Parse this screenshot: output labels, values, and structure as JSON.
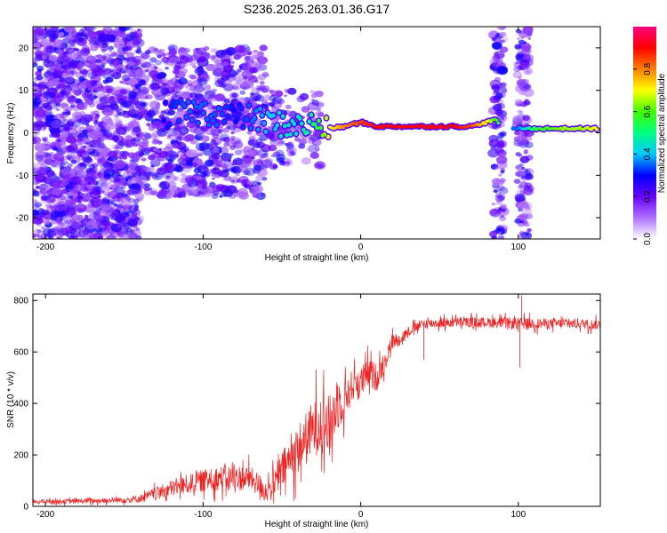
{
  "figure_title": "S236.2025.263.01.36.G17",
  "chart_data": [
    {
      "type": "heatmap",
      "panel": "top",
      "title": "S236.2025.263.01.36.G17",
      "xlabel": "Height of straight line (km)",
      "ylabel": "Frequency (Hz)",
      "xlim": [
        -208,
        152
      ],
      "ylim": [
        -25,
        25
      ],
      "x_ticks": [
        -200,
        -100,
        0,
        100
      ],
      "x_tick_labels": [
        "-200",
        "-100",
        "0",
        "100"
      ],
      "y_ticks": [
        -20,
        -10,
        0,
        10,
        20
      ],
      "y_tick_labels": [
        "-20",
        "-10",
        "0",
        "10",
        "20"
      ],
      "colorbar": {
        "label": "Normalized spectral amplitude",
        "range": [
          0,
          1
        ],
        "ticks": [
          0.0,
          0.2,
          0.4,
          0.6,
          0.8
        ],
        "tick_labels": [
          "0.0",
          "0.2",
          "0.4",
          "0.6",
          "0.8"
        ],
        "colors": [
          "#ffffff",
          "#b070ff",
          "#6a00ff",
          "#0000ff",
          "#00c8ff",
          "#00ff80",
          "#40ff00",
          "#ffff00",
          "#ff8000",
          "#ff0000",
          "#ff0080"
        ]
      },
      "ridge": {
        "x": [
          -125,
          -110,
          -100,
          -90,
          -80,
          -70,
          -60,
          -50,
          -40,
          -30,
          -20,
          -10,
          0,
          10,
          20,
          30,
          40,
          50,
          60,
          70,
          80,
          85,
          95,
          100,
          110,
          120,
          130,
          140,
          150
        ],
        "y": [
          4,
          5,
          5,
          4.5,
          4,
          3.5,
          2.5,
          2,
          1.5,
          2,
          1,
          1.5,
          2.5,
          1.5,
          1.5,
          1.5,
          1.5,
          1.5,
          1.5,
          1.5,
          2.5,
          3,
          1,
          1,
          1,
          1,
          1,
          1,
          1
        ],
        "amplitude": [
          0.3,
          0.35,
          0.35,
          0.35,
          0.3,
          0.35,
          0.4,
          0.45,
          0.45,
          0.5,
          0.7,
          0.8,
          0.85,
          0.9,
          0.9,
          0.9,
          0.9,
          0.9,
          0.9,
          0.85,
          0.7,
          0.6,
          0.4,
          0.35,
          0.55,
          0.6,
          0.65,
          0.65,
          0.7
        ]
      },
      "noise_bands": [
        {
          "x_range": [
            -208,
            -140
          ],
          "y_range": [
            -25,
            25
          ],
          "density": 0.9
        },
        {
          "x_range": [
            -140,
            -60
          ],
          "y_range": [
            -15,
            20
          ],
          "density": 0.6
        },
        {
          "x_range": [
            -60,
            -25
          ],
          "y_range": [
            -8,
            10
          ],
          "density": 0.4
        },
        {
          "x_range": [
            84,
            91
          ],
          "y_range": [
            -25,
            25
          ],
          "density": 0.8
        },
        {
          "x_range": [
            99,
            107
          ],
          "y_range": [
            -25,
            25
          ],
          "density": 0.8
        }
      ]
    },
    {
      "type": "line",
      "panel": "bottom",
      "xlabel": "Height of straight line (km)",
      "ylabel": "SNR (10 * v/v)",
      "xlim": [
        -208,
        152
      ],
      "ylim": [
        0,
        825
      ],
      "x_ticks": [
        -200,
        -100,
        0,
        100
      ],
      "x_tick_labels": [
        "-200",
        "-100",
        "0",
        "100"
      ],
      "y_ticks": [
        0,
        200,
        400,
        600,
        800
      ],
      "y_tick_labels": [
        "0",
        "200",
        "400",
        "600",
        "800"
      ],
      "series": [
        {
          "name": "SNR",
          "color": "#ee2222",
          "x": [
            -208,
            -180,
            -150,
            -140,
            -120,
            -100,
            -90,
            -80,
            -70,
            -60,
            -55,
            -50,
            -45,
            -40,
            -35,
            -30,
            -25,
            -20,
            -15,
            -10,
            -5,
            0,
            5,
            10,
            15,
            20,
            25,
            30,
            40,
            60,
            80,
            100,
            120,
            140,
            152
          ],
          "y": [
            18,
            20,
            25,
            30,
            70,
            100,
            110,
            110,
            110,
            60,
            80,
            140,
            180,
            220,
            260,
            300,
            340,
            300,
            400,
            420,
            470,
            480,
            520,
            500,
            560,
            640,
            650,
            680,
            710,
            715,
            715,
            710,
            710,
            710,
            705
          ],
          "noise_amplitude": [
            10,
            12,
            15,
            20,
            40,
            55,
            60,
            65,
            60,
            55,
            70,
            90,
            110,
            120,
            130,
            140,
            160,
            160,
            140,
            100,
            80,
            80,
            70,
            70,
            55,
            40,
            30,
            25,
            25,
            25,
            25,
            30,
            25,
            25,
            25
          ],
          "spikes": [
            {
              "x": 102,
              "y": 820
            },
            {
              "x": 101,
              "y": 540
            },
            {
              "x": 40,
              "y": 570
            }
          ]
        }
      ]
    }
  ]
}
